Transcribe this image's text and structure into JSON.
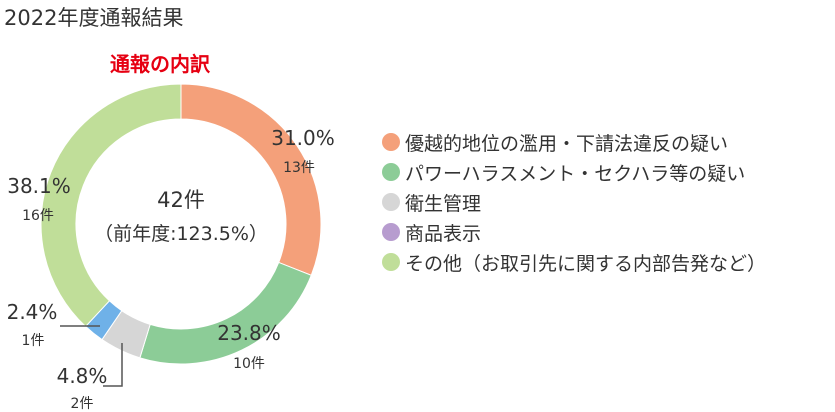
{
  "page_title": "2022年度通報結果",
  "chart_data": {
    "type": "pie",
    "title": "通報の内訳",
    "center_total": "42件",
    "center_previous": "（前年度:123.5%）",
    "categories": [
      "優越的地位の濫用・下請法違反の疑い",
      "パワーハラスメント・セクハラ等の疑い",
      "衛生管理",
      "商品表示",
      "その他（お取引先に関する内部告発など）"
    ],
    "values": [
      31.0,
      23.8,
      4.8,
      2.4,
      38.1
    ],
    "counts": [
      13,
      10,
      2,
      1,
      16
    ],
    "colors": [
      "#f4a07a",
      "#8ccc97",
      "#d6d6d6",
      "#6fb1e8",
      "#c0de99"
    ],
    "legend_colors": [
      "#f4a07a",
      "#8ccc97",
      "#d6d6d6",
      "#b79ccf",
      "#c0de99"
    ],
    "slice_labels": [
      {
        "percent": "31.0%",
        "count": "13件"
      },
      {
        "percent": "23.8%",
        "count": "10件"
      },
      {
        "percent": "4.8%",
        "count": "2件"
      },
      {
        "percent": "2.4%",
        "count": "1件"
      },
      {
        "percent": "38.1%",
        "count": "16件"
      }
    ],
    "legend": [
      "優越的地位の濫用・下請法違反の疑い",
      "パワーハラスメント・セクハラ等の疑い",
      "衛生管理",
      "商品表示",
      "その他（お取引先に関する内部告発など）"
    ],
    "legend_position": "right"
  }
}
